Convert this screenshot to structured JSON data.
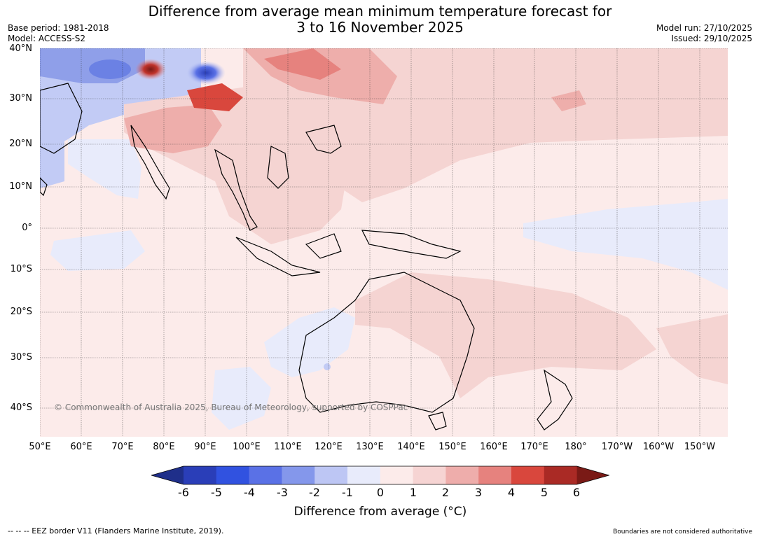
{
  "title": {
    "line1": "Difference from average mean minimum temperature forecast for",
    "line2": "3 to 16 November 2025"
  },
  "meta_left": {
    "base_period": "Base period: 1981-2018",
    "model": "Model: ACCESS-S2"
  },
  "meta_right": {
    "model_run": "Model run: 27/10/2025",
    "issued": "Issued: 29/10/2025"
  },
  "lat_labels": [
    "40°N",
    "30°N",
    "20°N",
    "10°N",
    "0°",
    "10°S",
    "20°S",
    "30°S",
    "40°S"
  ],
  "lon_labels": [
    "50°E",
    "60°E",
    "70°E",
    "80°E",
    "90°E",
    "100°E",
    "110°E",
    "120°E",
    "130°E",
    "140°E",
    "150°E",
    "160°E",
    "170°E",
    "180°",
    "170°W",
    "160°W",
    "150°W"
  ],
  "copyright": "© Commonwealth of Australia 2025, Bureau of Meteorology, supported by COSPPac",
  "colorbar": {
    "ticks": [
      "-6",
      "-5",
      "-4",
      "-3",
      "-2",
      "-1",
      "0",
      "1",
      "2",
      "3",
      "4",
      "5",
      "6"
    ],
    "colors": [
      "#1f2f8a",
      "#2a3eb8",
      "#3152e0",
      "#5a71e6",
      "#8497eb",
      "#bdc6f4",
      "#e8ebfb",
      "#fcebea",
      "#f6d4d3",
      "#eeadab",
      "#e6827e",
      "#d9473d",
      "#aa2a25",
      "#7a1a16"
    ],
    "title": "Difference from average ($^\\circ$C)",
    "title_display": "Difference from average (°C)"
  },
  "footer": {
    "eez": "--  --  -- EEZ border V11 (Flanders Marine Institute, 2019).",
    "boundaries": "Boundaries are not considered authoritative"
  },
  "colors": {
    "background_warm": "#fcebea",
    "warm_1_2": "#f5d4d2",
    "warm_2_3": "#eeaeab",
    "warm_3_4": "#e6827e",
    "warm_4_5": "#d9473d",
    "cool_0_1": "#e8ebfb",
    "cool_1_2": "#c2cbf5",
    "cool_2_3": "#8497eb",
    "cool_3_4": "#4a64e2"
  }
}
